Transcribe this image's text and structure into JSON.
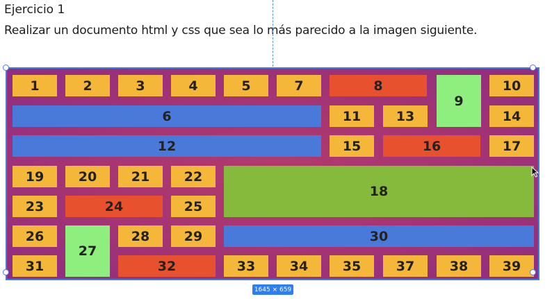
{
  "heading": "Ejercicio 1",
  "instruction": "Realizar un documento html y css que sea lo más parecido a la imagen siguiente.",
  "selection": {
    "dimensions": "1645 × 659"
  },
  "cells": {
    "c1": "1",
    "c2": "2",
    "c3": "3",
    "c4": "4",
    "c5": "5",
    "c7": "7",
    "c8": "8",
    "c9": "9",
    "c10": "10",
    "c6": "6",
    "c11": "11",
    "c13": "13",
    "c14": "14",
    "c12": "12",
    "c15": "15",
    "c16": "16",
    "c17": "17",
    "c19": "19",
    "c20": "20",
    "c21": "21",
    "c22": "22",
    "c18": "18",
    "c23": "23",
    "c24": "24",
    "c25": "25",
    "c26": "26",
    "c27": "27",
    "c28": "28",
    "c29": "29",
    "c30": "30",
    "c31": "31",
    "c32": "32",
    "c33": "33",
    "c34": "34",
    "c35": "35",
    "c37": "37",
    "c38": "38",
    "c39": "39"
  },
  "colors": {
    "yellow": "#f4b73a",
    "red": "#e8512e",
    "blue": "#4a7ad9",
    "light_green": "#8fef7e",
    "olive_green": "#86ba3c",
    "background": "#a33474"
  }
}
